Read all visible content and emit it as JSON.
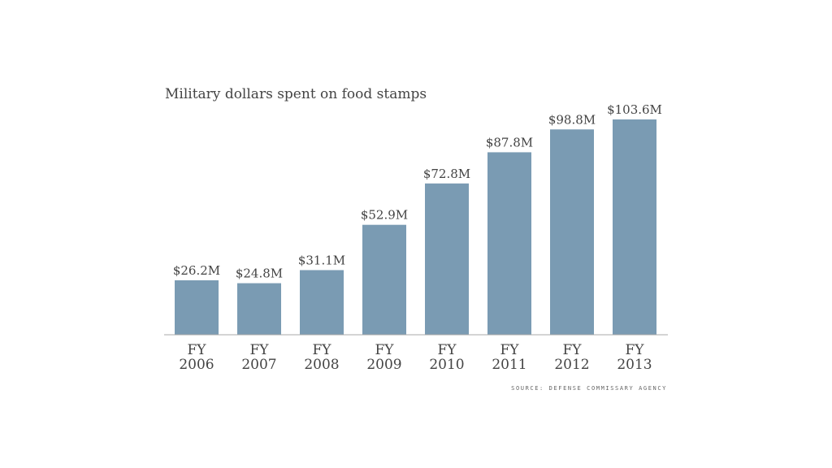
{
  "chart_data": {
    "type": "bar",
    "title": "Military dollars spent on food stamps",
    "categories": [
      [
        "FY",
        "2006"
      ],
      [
        "FY",
        "2007"
      ],
      [
        "FY",
        "2008"
      ],
      [
        "FY",
        "2009"
      ],
      [
        "FY",
        "2010"
      ],
      [
        "FY",
        "2011"
      ],
      [
        "FY",
        "2012"
      ],
      [
        "FY",
        "2013"
      ]
    ],
    "values": [
      26.2,
      24.8,
      31.1,
      52.9,
      72.8,
      87.8,
      98.8,
      103.6
    ],
    "data_labels": [
      "$26.2M",
      "$24.8M",
      "$31.1M",
      "$52.9M",
      "$72.8M",
      "$87.8M",
      "$98.8M",
      "$103.6M"
    ],
    "xlabel": "",
    "ylabel": "",
    "ylim": [
      0,
      105
    ],
    "grid": false,
    "source": "SOURCE: DEFENSE COMMISSARY AGENCY",
    "colors": {
      "bar": "#7a9bb3",
      "axis": "#aaaaaa",
      "text": "#444444"
    }
  }
}
